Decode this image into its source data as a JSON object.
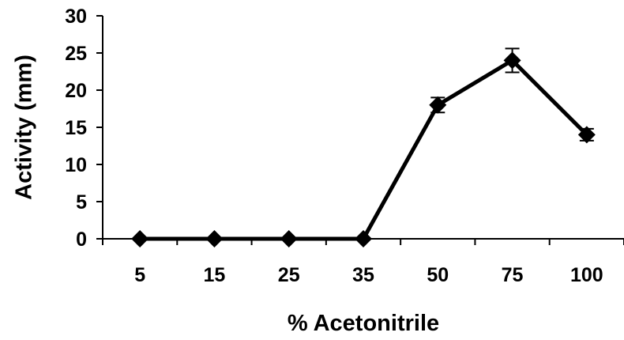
{
  "chart_data": {
    "type": "line",
    "title": "",
    "xlabel": "% Acetonitrile",
    "ylabel": "Activity (mm)",
    "categories": [
      "5",
      "15",
      "25",
      "35",
      "50",
      "75",
      "100"
    ],
    "series": [
      {
        "values": [
          0,
          0,
          0,
          0,
          18,
          24,
          14
        ],
        "errors": [
          0,
          0,
          0,
          0,
          1.0,
          1.6,
          0.8
        ]
      }
    ],
    "ylim": [
      0,
      30
    ],
    "yticks": [
      0,
      5,
      10,
      15,
      20,
      25,
      30
    ],
    "grid": false,
    "legend": "none",
    "marker": "diamond",
    "line_color": "#000000"
  }
}
